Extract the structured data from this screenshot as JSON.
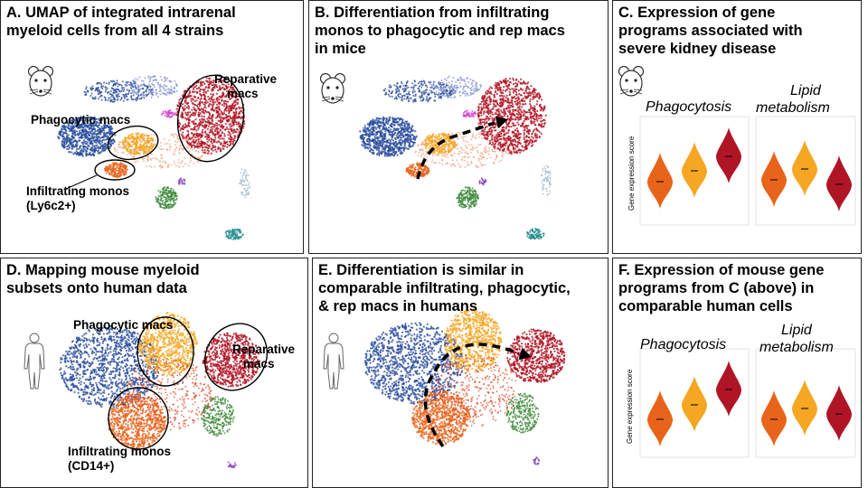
{
  "panels": {
    "A": {
      "title_line1": "A. UMAP of integrated intrarenal",
      "title_line2": "myeloid cells from all 4 strains",
      "label_reparative_line1": "Reparative",
      "label_reparative_line2": "macs",
      "label_phagocytic": "Phagocytic macs",
      "label_infiltrating_line1": "Infiltrating monos",
      "label_infiltrating_line2": "(Ly6c2+)"
    },
    "B": {
      "title_line1": "B. Differentiation from infiltrating",
      "title_line2": "monos to phagocytic and rep macs",
      "title_line3": "in mice"
    },
    "C": {
      "title_line1": "C. Expression of gene",
      "title_line2": "programs associated with",
      "title_line3": "severe kidney disease",
      "program1": "Phagocytosis",
      "program2_line1": "Lipid",
      "program2_line2": "metabolism",
      "ylabel": "Gene expression score"
    },
    "D": {
      "title_line1": "D. Mapping mouse myeloid",
      "title_line2": "subsets onto human data",
      "label_phagocytic": "Phagocytic macs",
      "label_reparative_line1": "Reparative",
      "label_reparative_line2": "macs",
      "label_infiltrating_line1": "Infiltrating monos",
      "label_infiltrating_line2": "(CD14+)"
    },
    "E": {
      "title_line1": "E. Differentiation is similar in",
      "title_line2": "comparable infiltrating, phagocytic,",
      "title_line3": "& rep macs in humans"
    },
    "F": {
      "title_line1": "F. Expression of mouse gene",
      "title_line2": "programs from C (above) in",
      "title_line3": "comparable human cells",
      "program1": "Phagocytosis",
      "program2_line1": "Lipid",
      "program2_line2": "metabolism",
      "ylabel": "Gene expression score"
    }
  },
  "colors": {
    "infiltrating": "#e8641a",
    "phagocytic": "#f5a623",
    "reparative": "#b01526",
    "blue": "#2a4d9e",
    "green": "#3d8a3a",
    "teal": "#1e8a8a",
    "magenta": "#d23fd2",
    "purple": "#8a3fc2"
  },
  "icons": {
    "mouse": "mouse-icon",
    "human": "human-silhouette-icon"
  }
}
